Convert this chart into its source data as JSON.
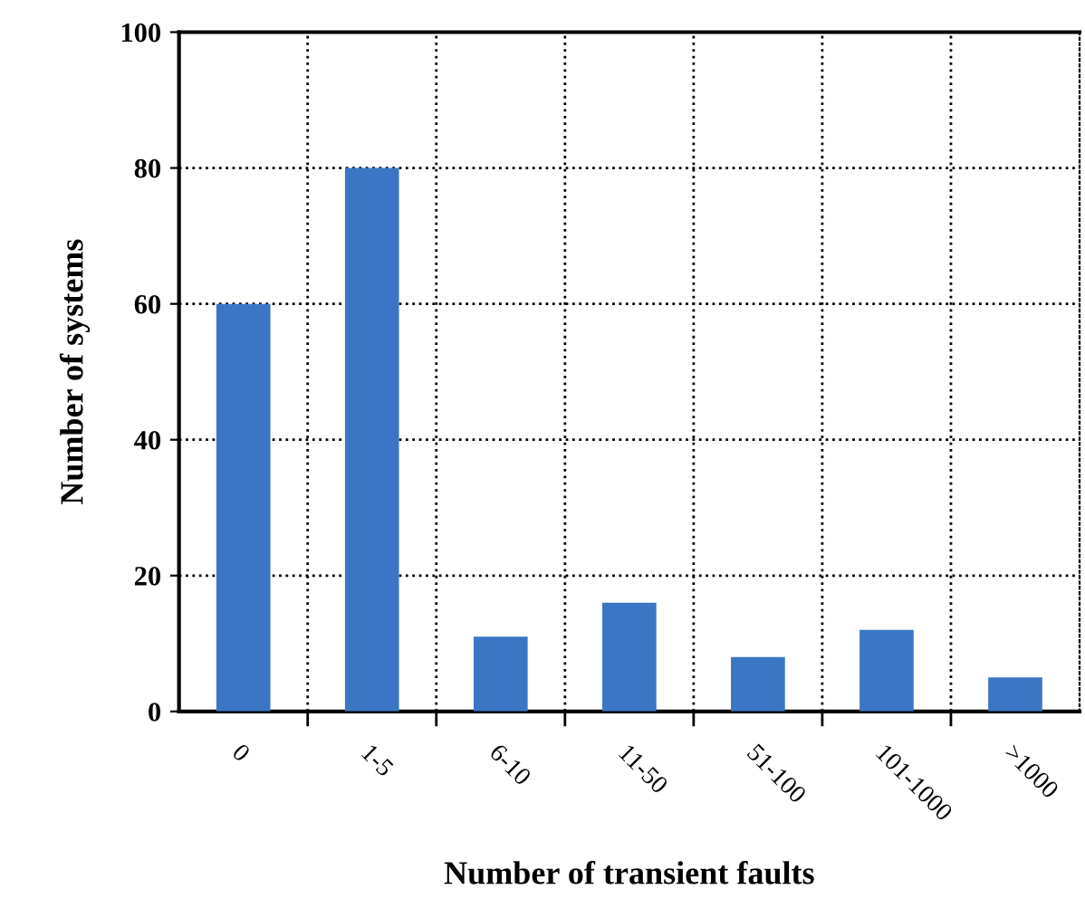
{
  "chart_data": {
    "type": "bar",
    "xlabel": "Number of transient faults",
    "ylabel": "Number of systems",
    "categories": [
      "0",
      "1-5",
      "6-10",
      "11-50",
      "51-100",
      "101-1000",
      ">1000"
    ],
    "values": [
      60,
      80,
      11,
      16,
      8,
      12,
      5
    ],
    "color": "#3a76c4",
    "ylim": [
      0,
      100
    ],
    "yticks": [
      0,
      20,
      40,
      60,
      80,
      100
    ],
    "grid": true
  }
}
